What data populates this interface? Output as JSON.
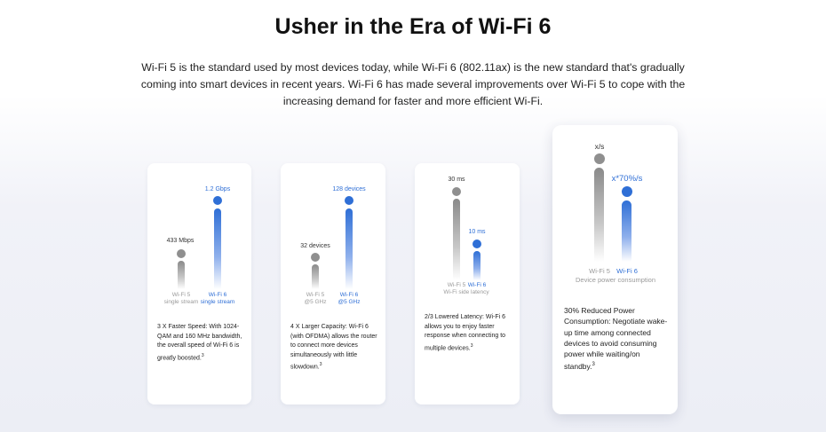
{
  "header": {
    "title": "Usher in the Era of Wi-Fi 6",
    "intro": "Wi-Fi 5 is the standard used by most devices today, while Wi-Fi 6 (802.11ax) is the new standard that's gradually coming into smart devices in recent years. Wi-Fi 6 has made several improvements over Wi-Fi 5 to cope with the increasing demand for faster and more efficient Wi-Fi."
  },
  "cards": [
    {
      "wifi5_value": "433 Mbps",
      "wifi6_value": "1.2 Gbps",
      "wifi5_label": "Wi-Fi 5",
      "wifi5_sublabel": "single stream",
      "wifi6_label": "Wi-Fi 6",
      "wifi6_sublabel": "single stream",
      "description": "3 X Faster Speed: With 1024-QAM and 160 MHz bandwidth, the overall speed of Wi-Fi 6 is greatly boosted.",
      "footnote": "3"
    },
    {
      "wifi5_value": "32 devices",
      "wifi6_value": "128 devices",
      "wifi5_label": "Wi-Fi 5",
      "wifi5_sublabel": "@5 GHz",
      "wifi6_label": "Wi-Fi 6",
      "wifi6_sublabel": "@5 GHz",
      "description": "4 X Larger Capacity: Wi-Fi 6 (with OFDMA) allows the router to connect more devices simultaneously with little slowdown.",
      "footnote": "3"
    },
    {
      "wifi5_value": "30 ms",
      "wifi6_value": "10 ms",
      "wifi5_label": "Wi-Fi 5",
      "wifi6_label": "Wi-Fi 6",
      "caption": "Wi-Fi side latency",
      "description": "2/3 Lowered Latency: Wi-Fi 6 allows you to enjoy faster response when connecting to multiple devices.",
      "footnote": "3"
    },
    {
      "wifi5_value": "x/s",
      "wifi6_value": "x*70%/s",
      "wifi5_label": "Wi-Fi 5",
      "wifi6_label": "Wi-Fi 6",
      "caption": "Device power consumption",
      "description": "30% Reduced Power Consumption: Negotiate wake-up time among connected devices to avoid consuming power while waiting/on standby.",
      "footnote": "3"
    }
  ],
  "colors": {
    "wifi5": "#8f8f8f",
    "wifi6": "#2f6fd6"
  }
}
